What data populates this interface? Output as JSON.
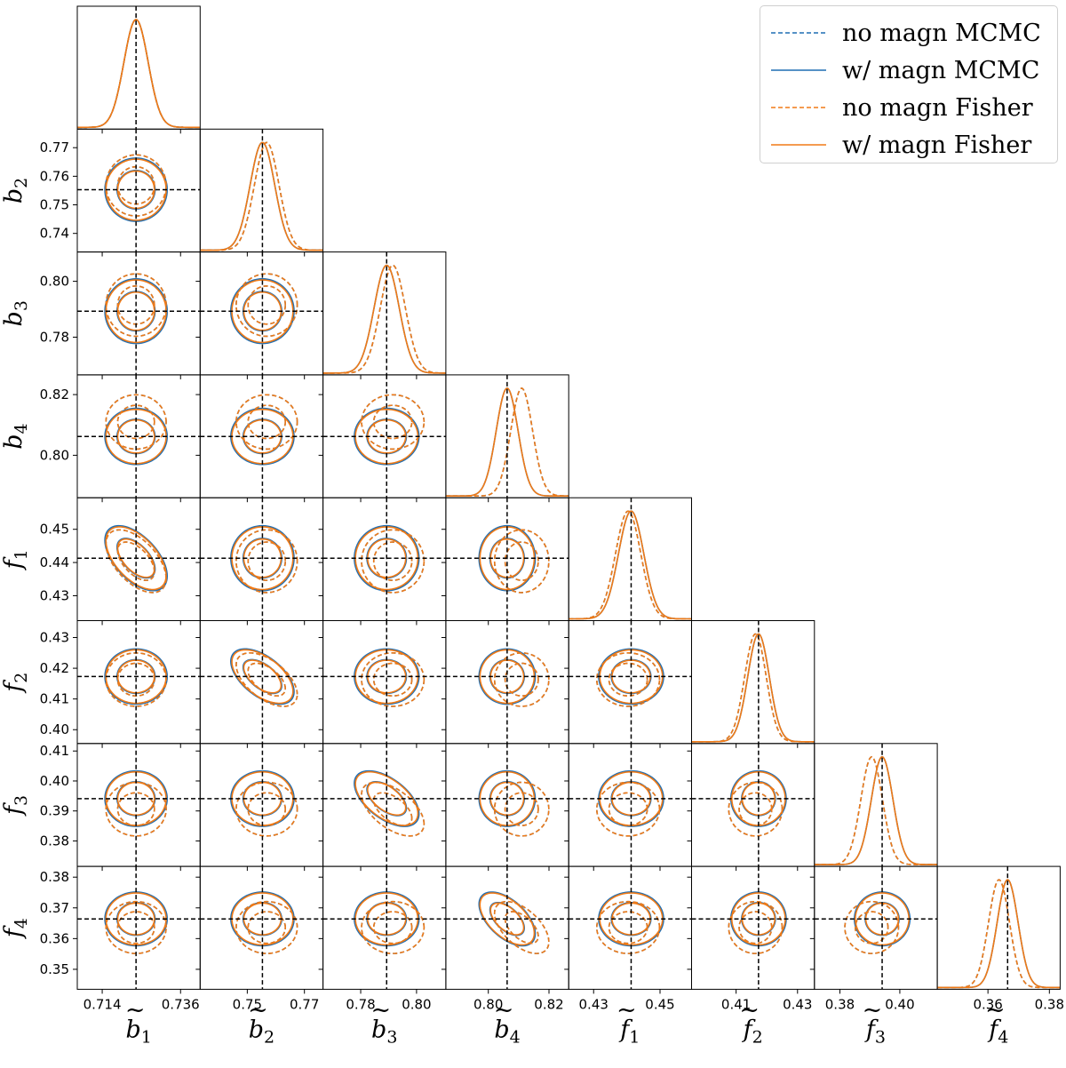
{
  "colors": {
    "mcmc": "#1f6fb4",
    "fisher": "#f07a16",
    "truth": "#000000"
  },
  "legend": [
    {
      "label": "no magn MCMC",
      "color": "#1f6fb4",
      "dashed": true
    },
    {
      "label": "w/ magn MCMC",
      "color": "#1f6fb4",
      "dashed": false
    },
    {
      "label": "no magn Fisher",
      "color": "#f07a16",
      "dashed": true
    },
    {
      "label": "w/ magn Fisher",
      "color": "#f07a16",
      "dashed": false
    }
  ],
  "chart_data": {
    "type": "corner",
    "parameters": [
      {
        "label": "b",
        "sub": "1",
        "fiducial": 0.7235,
        "range": [
          0.707,
          0.7415
        ],
        "ticks": [
          0.714,
          0.736
        ],
        "ticklabels": [
          "0.714",
          "0.736"
        ],
        "sigma_with": 0.0034,
        "shift_no": 0.0,
        "sigma_no": 0.0034
      },
      {
        "label": "b",
        "sub": "2",
        "fiducial": 0.7553,
        "range": [
          0.7335,
          0.7765
        ],
        "ticks": [
          0.75,
          0.77
        ],
        "ticklabels": [
          "0.75",
          "0.77"
        ],
        "sigma_with": 0.0043,
        "shift_no": 0.0015,
        "sigma_no": 0.0043,
        "yticks": [
          0.74,
          0.75,
          0.76,
          0.77
        ],
        "yticklabels": [
          "0.74",
          "0.75",
          "0.76",
          "0.77"
        ]
      },
      {
        "label": "b",
        "sub": "3",
        "fiducial": 0.7893,
        "range": [
          0.7665,
          0.8105
        ],
        "ticks": [
          0.78,
          0.8
        ],
        "ticklabels": [
          "0.78",
          "0.80"
        ],
        "sigma_with": 0.0045,
        "shift_no": 0.0022,
        "sigma_no": 0.0045,
        "yticks": [
          0.78,
          0.8
        ],
        "yticklabels": [
          "0.78",
          "0.80"
        ]
      },
      {
        "label": "b",
        "sub": "4",
        "fiducial": 0.8062,
        "range": [
          0.786,
          0.8265
        ],
        "ticks": [
          0.8,
          0.82
        ],
        "ticklabels": [
          "0.80",
          "0.82"
        ],
        "sigma_with": 0.0036,
        "shift_no": 0.0048,
        "sigma_no": 0.0036,
        "yticks": [
          0.8,
          0.82
        ],
        "yticklabels": [
          "0.80",
          "0.82"
        ]
      },
      {
        "label": "f",
        "sub": "1",
        "fiducial": 0.4413,
        "range": [
          0.4225,
          0.4595
        ],
        "ticks": [
          0.43,
          0.45
        ],
        "ticklabels": [
          "0.43",
          "0.45"
        ],
        "sigma_with": 0.0038,
        "shift_no": -0.0009,
        "sigma_no": 0.0038,
        "yticks": [
          0.43,
          0.44,
          0.45
        ],
        "yticklabels": [
          "0.43",
          "0.44",
          "0.45"
        ]
      },
      {
        "label": "f",
        "sub": "2",
        "fiducial": 0.4173,
        "range": [
          0.3955,
          0.4355
        ],
        "ticks": [
          0.41,
          0.43
        ],
        "ticklabels": [
          "0.41",
          "0.43"
        ],
        "sigma_with": 0.0035,
        "shift_no": -0.001,
        "sigma_no": 0.0035,
        "yticks": [
          0.4,
          0.41,
          0.42,
          0.43
        ],
        "yticklabels": [
          "0.40",
          "0.41",
          "0.42",
          "0.43"
        ]
      },
      {
        "label": "f",
        "sub": "3",
        "fiducial": 0.3941,
        "range": [
          0.3715,
          0.4125
        ],
        "ticks": [
          0.38,
          0.4
        ],
        "ticklabels": [
          "0.38",
          "0.40"
        ],
        "sigma_with": 0.0036,
        "shift_no": -0.0035,
        "sigma_no": 0.0036,
        "yticks": [
          0.38,
          0.39,
          0.4,
          0.41
        ],
        "yticklabels": [
          "0.38",
          "0.39",
          "0.40",
          "0.41"
        ]
      },
      {
        "label": "f",
        "sub": "4",
        "fiducial": 0.3664,
        "range": [
          0.3435,
          0.3835
        ],
        "ticks": [
          0.36,
          0.38
        ],
        "ticklabels": [
          "0.36",
          "0.38"
        ],
        "sigma_with": 0.0034,
        "shift_no": -0.0028,
        "sigma_no": 0.0034,
        "yticks": [
          0.35,
          0.36,
          0.37,
          0.38
        ],
        "yticklabels": [
          "0.35",
          "0.36",
          "0.37",
          "0.38"
        ]
      }
    ],
    "correlations": [
      {
        "i": 0,
        "j": 4,
        "rho": -0.55
      },
      {
        "i": 1,
        "j": 5,
        "rho": -0.55
      },
      {
        "i": 2,
        "j": 6,
        "rho": -0.55
      },
      {
        "i": 3,
        "j": 7,
        "rho": -0.55
      }
    ],
    "contour_levels": [
      0.68,
      0.95
    ],
    "truth_lines": true
  }
}
